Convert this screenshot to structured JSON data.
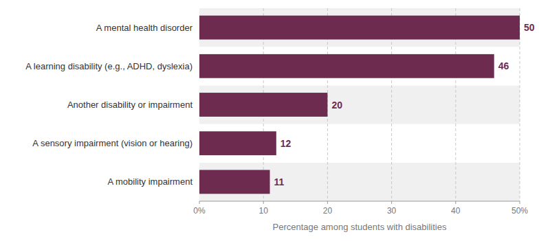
{
  "chart_data": {
    "type": "bar",
    "orientation": "horizontal",
    "categories": [
      "A mobility impairment",
      "A sensory impairment (vision or hearing)",
      "Another disability or impairment",
      "A learning disability (e.g., ADHD, dyslexia)",
      "A mental health disorder"
    ],
    "values": [
      11,
      12,
      20,
      46,
      50
    ],
    "color": "#6d2b50",
    "xlabel": "Percentage among students with disabilities",
    "xlim": [
      0,
      50
    ],
    "xticks": [
      {
        "value": 0,
        "label": "0%"
      },
      10,
      20,
      30,
      40,
      {
        "value": 50,
        "label": "50%"
      }
    ],
    "grid": true,
    "data_labels": true
  }
}
